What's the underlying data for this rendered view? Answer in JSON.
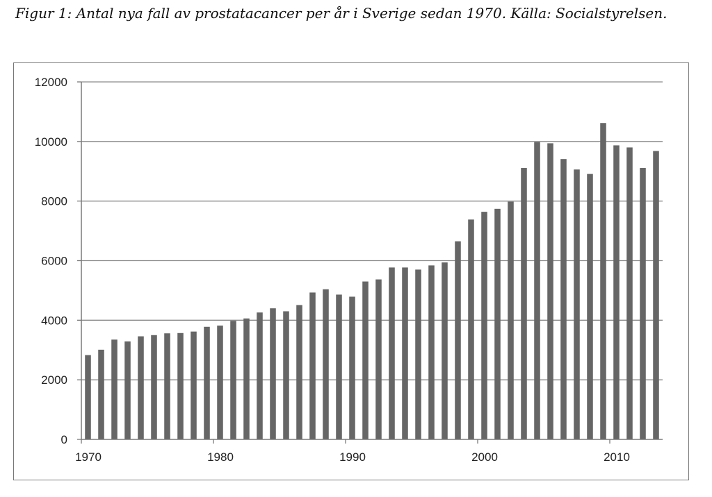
{
  "caption": "Figur 1: Antal nya fall av prostatacancer per år i Sverige sedan 1970. Källa: Socialstyrelsen.",
  "chart_data": {
    "type": "bar",
    "title": "",
    "xlabel": "",
    "ylabel": "",
    "ylim": [
      0,
      12000
    ],
    "yticks": [
      0,
      2000,
      4000,
      6000,
      8000,
      10000,
      12000
    ],
    "xticks": [
      1970,
      1980,
      1990,
      2000,
      2010
    ],
    "grid": true,
    "legend": "none",
    "bar_color": "#666666",
    "categories": [
      1970,
      1971,
      1972,
      1973,
      1974,
      1975,
      1976,
      1977,
      1978,
      1979,
      1980,
      1981,
      1982,
      1983,
      1984,
      1985,
      1986,
      1987,
      1988,
      1989,
      1990,
      1991,
      1992,
      1993,
      1994,
      1995,
      1996,
      1997,
      1998,
      1999,
      2000,
      2001,
      2002,
      2003,
      2004,
      2005,
      2006,
      2007,
      2008,
      2009,
      2010,
      2011,
      2012,
      2013
    ],
    "values": [
      2830,
      3010,
      3350,
      3290,
      3460,
      3500,
      3560,
      3570,
      3620,
      3780,
      3820,
      3980,
      4060,
      4260,
      4400,
      4300,
      4510,
      4930,
      5040,
      4860,
      4790,
      5300,
      5370,
      5770,
      5770,
      5700,
      5840,
      5940,
      6650,
      7380,
      7640,
      7740,
      7980,
      9110,
      9980,
      9940,
      9410,
      9060,
      8910,
      10620,
      9870,
      9800,
      9110,
      9680
    ]
  }
}
